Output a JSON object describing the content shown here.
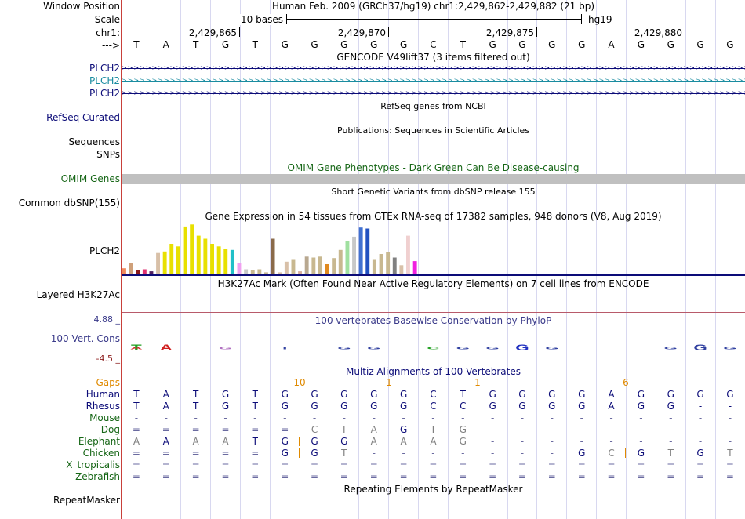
{
  "position": {
    "label_window": "Window Position",
    "label_scale": "Scale",
    "label_chr": "chr1:",
    "label_strand": "--->",
    "title": "Human Feb. 2009 (GRCh37/hg19)   chr1:2,429,862-2,429,882 (21 bp)",
    "scale_text": "10 bases",
    "scale_assembly": "hg19",
    "coords": [
      "2,429,865",
      "2,429,870",
      "2,429,875",
      "2,429,880"
    ]
  },
  "sequence": [
    "T",
    "A",
    "T",
    "G",
    "T",
    "G",
    "G",
    "G",
    "G",
    "G",
    "C",
    "T",
    "G",
    "G",
    "G",
    "G",
    "A",
    "G",
    "G",
    "G",
    "G"
  ],
  "tracks": {
    "gencode": {
      "title": "GENCODE V49lift37 (3 items filtered out)",
      "items": [
        "PLCH2",
        "PLCH2",
        "PLCH2"
      ],
      "colors": [
        "#0c0c78",
        "#1a8ca0",
        "#0c0c78"
      ]
    },
    "refseq": {
      "title": "RefSeq genes from NCBI",
      "label": "RefSeq Curated"
    },
    "publications": {
      "title": "Publications: Sequences in Scientific Articles",
      "labels": [
        "Sequences",
        "SNPs"
      ]
    },
    "omim": {
      "title": "OMIM Gene Phenotypes - Dark Green Can Be Disease-causing",
      "label": "OMIM Genes"
    },
    "dbsnp": {
      "title": "Short Genetic Variants from dbSNP release 155",
      "label": "Common dbSNP(155)"
    },
    "gtex": {
      "title": "Gene Expression in 54 tissues from GTEx RNA-seq of 17382 samples, 948 donors (V8, Aug 2019)",
      "label": "PLCH2"
    },
    "h3k27ac": {
      "title": "H3K27Ac Mark (Often Found Near Active Regulatory Elements) on 7 cell lines from ENCODE",
      "label": "Layered H3K27Ac"
    },
    "phylop": {
      "title": "100 vertebrates Basewise Conservation by PhyloP",
      "label": "100 Vert. Cons",
      "max": "4.88 _",
      "min": "-4.5 _"
    },
    "multiz": {
      "title": "Multiz Alignments of 100 Vertebrates",
      "gaps_label": "Gaps",
      "gap_marks": [
        {
          "col": 5,
          "text": "10"
        },
        {
          "col": 8,
          "text": "1"
        },
        {
          "col": 11,
          "text": "1"
        },
        {
          "col": 16,
          "text": "6"
        }
      ],
      "species": [
        {
          "name": "Human",
          "color": "#0c0c78",
          "bases": [
            "T",
            "A",
            "T",
            "G",
            "T",
            "G",
            "G",
            "G",
            "G",
            "G",
            "C",
            "T",
            "G",
            "G",
            "G",
            "G",
            "A",
            "G",
            "G",
            "G",
            "G"
          ]
        },
        {
          "name": "Rhesus",
          "color": "#0c0c78",
          "bases": [
            "T",
            "A",
            "T",
            "G",
            "T",
            "G",
            "G",
            "G",
            "G",
            "G",
            "C",
            "C",
            "G",
            "G",
            "G",
            "G",
            "A",
            "G",
            "G",
            "-",
            "-"
          ]
        },
        {
          "name": "Mouse",
          "color": "#166616",
          "bases": [
            "-",
            "-",
            "-",
            "-",
            "-",
            "-",
            "-",
            "-",
            "-",
            "-",
            "-",
            "-",
            "-",
            "-",
            "-",
            "-",
            "-",
            "-",
            "-",
            "-",
            "-"
          ]
        },
        {
          "name": "Dog",
          "color": "#166616",
          "bases": [
            "=",
            "=",
            "=",
            "=",
            "=",
            "=",
            "C",
            "T",
            "A",
            "G",
            "T",
            "G",
            "-",
            "-",
            "-",
            "-",
            "-",
            "-",
            "-",
            "-",
            "-"
          ]
        },
        {
          "name": "Elephant",
          "color": "#166616",
          "bases": [
            "A",
            "A",
            "A",
            "A",
            "T",
            "G",
            "G",
            "G",
            "A",
            "A",
            "A",
            "G",
            "-",
            "-",
            "-",
            "-",
            "-",
            "-",
            "-",
            "-",
            "-"
          ]
        },
        {
          "name": "Chicken",
          "color": "#166616",
          "bases": [
            "=",
            "=",
            "=",
            "=",
            "=",
            "G",
            "G",
            "T",
            "-",
            "-",
            "-",
            "-",
            "-",
            "-",
            "-",
            "G",
            "C",
            "G",
            "T",
            "G",
            "T"
          ]
        },
        {
          "name": "X_tropicalis",
          "color": "#166616",
          "bases": [
            "=",
            "=",
            "=",
            "=",
            "=",
            "=",
            "=",
            "=",
            "=",
            "=",
            "=",
            "=",
            "=",
            "=",
            "=",
            "=",
            "=",
            "=",
            "=",
            "=",
            "="
          ]
        },
        {
          "name": "Zebrafish",
          "color": "#166616",
          "bases": [
            "=",
            "=",
            "=",
            "=",
            "=",
            "=",
            "=",
            "=",
            "=",
            "=",
            "=",
            "=",
            "=",
            "=",
            "=",
            "=",
            "=",
            "=",
            "=",
            "=",
            "="
          ]
        }
      ]
    },
    "repeatmasker": {
      "title": "Repeating Elements by RepeatMasker",
      "label": "RepeatMasker"
    }
  },
  "gtex_bars": [
    {
      "v": 0.12,
      "c": "#f08a5d"
    },
    {
      "v": 0.22,
      "c": "#cfa07a"
    },
    {
      "v": 0.08,
      "c": "#8b1a1a"
    },
    {
      "v": 0.1,
      "c": "#e03070"
    },
    {
      "v": 0.06,
      "c": "#502060"
    },
    {
      "v": 0.42,
      "c": "#d8c0a8"
    },
    {
      "v": 0.45,
      "c": "#e8e000"
    },
    {
      "v": 0.6,
      "c": "#e8e000"
    },
    {
      "v": 0.55,
      "c": "#e8e000"
    },
    {
      "v": 0.94,
      "c": "#e8e000"
    },
    {
      "v": 0.98,
      "c": "#e8e000"
    },
    {
      "v": 0.76,
      "c": "#e8e000"
    },
    {
      "v": 0.7,
      "c": "#e8e000"
    },
    {
      "v": 0.6,
      "c": "#e8e000"
    },
    {
      "v": 0.55,
      "c": "#e8e000"
    },
    {
      "v": 0.5,
      "c": "#e8e000"
    },
    {
      "v": 0.48,
      "c": "#20c0c8"
    },
    {
      "v": 0.22,
      "c": "#f0a0f0"
    },
    {
      "v": 0.1,
      "c": "#c8c8c8"
    },
    {
      "v": 0.08,
      "c": "#c8b890"
    },
    {
      "v": 0.1,
      "c": "#c8b890"
    },
    {
      "v": 0.04,
      "c": "#c8b890"
    },
    {
      "v": 0.7,
      "c": "#8a6a4a"
    },
    {
      "v": 0.04,
      "c": "#d8c0a8"
    },
    {
      "v": 0.25,
      "c": "#d8c0a8"
    },
    {
      "v": 0.3,
      "c": "#c8b890"
    },
    {
      "v": 0.06,
      "c": "#d8b0a0"
    },
    {
      "v": 0.35,
      "c": "#b8a890"
    },
    {
      "v": 0.33,
      "c": "#c8b890"
    },
    {
      "v": 0.35,
      "c": "#c8b890"
    },
    {
      "v": 0.2,
      "c": "#e08a20"
    },
    {
      "v": 0.32,
      "c": "#c8b890"
    },
    {
      "v": 0.48,
      "c": "#c8b890"
    },
    {
      "v": 0.66,
      "c": "#a0e0a0"
    },
    {
      "v": 0.74,
      "c": "#c8c8c8"
    },
    {
      "v": 0.92,
      "c": "#4070d0"
    },
    {
      "v": 0.9,
      "c": "#2050c0"
    },
    {
      "v": 0.3,
      "c": "#c8b890"
    },
    {
      "v": 0.4,
      "c": "#c8b890"
    },
    {
      "v": 0.44,
      "c": "#c8b890"
    },
    {
      "v": 0.33,
      "c": "#808080"
    },
    {
      "v": 0.18,
      "c": "#d8c0a8"
    },
    {
      "v": 0.76,
      "c": "#f0d0d0"
    },
    {
      "v": 0.26,
      "c": "#f020e0"
    }
  ],
  "phylop_logo": [
    {
      "col": 0,
      "base": "T",
      "c": "#20a020",
      "up": true
    },
    {
      "col": 0,
      "base": "A",
      "c": "#d02020",
      "up": false
    },
    {
      "col": 1,
      "base": "A",
      "c": "#d02020",
      "up": true
    },
    {
      "col": 3,
      "base": "G",
      "c": "#b070c0",
      "up": false
    },
    {
      "col": 5,
      "base": "T",
      "c": "#3040a0",
      "up": false
    },
    {
      "col": 7,
      "base": "G",
      "c": "#3040a0",
      "up": false
    },
    {
      "col": 8,
      "base": "G",
      "c": "#3040a0",
      "up": false
    },
    {
      "col": 10,
      "base": "C",
      "c": "#20a020",
      "up": false
    },
    {
      "col": 11,
      "base": "G",
      "c": "#3040a0",
      "up": false
    },
    {
      "col": 12,
      "base": "G",
      "c": "#3040a0",
      "up": false
    },
    {
      "col": 13,
      "base": "G",
      "c": "#2030c0",
      "up": true
    },
    {
      "col": 14,
      "base": "G",
      "c": "#3040a0",
      "up": false
    },
    {
      "col": 18,
      "base": "G",
      "c": "#3040a0",
      "up": false
    },
    {
      "col": 19,
      "base": "G",
      "c": "#3040a0",
      "up": true
    },
    {
      "col": 20,
      "base": "G",
      "c": "#3040a0",
      "up": false
    }
  ],
  "colors": {
    "navy": "#0c0c78",
    "green": "#166616",
    "gaps": "#e08a00",
    "sep": "#c8403a",
    "omim": "#c0c0c0"
  }
}
